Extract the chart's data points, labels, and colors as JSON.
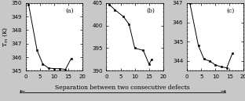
{
  "panels": [
    {
      "label": "(a)",
      "x": [
        1,
        4,
        6,
        8,
        10,
        12,
        14,
        16
      ],
      "y": [
        349.9,
        346.5,
        345.5,
        345.2,
        345.15,
        345.15,
        345.1,
        345.9
      ],
      "ylim": [
        345,
        350
      ],
      "yticks": [
        345,
        346,
        347,
        348,
        349,
        350
      ],
      "ytick_labels": [
        "345",
        "346",
        "347",
        "348",
        "349",
        "350"
      ],
      "xlim": [
        0,
        20
      ],
      "xticks": [
        0,
        5,
        10,
        15,
        20
      ]
    },
    {
      "label": "(b)",
      "x": [
        1,
        3,
        6,
        8,
        10,
        13,
        15,
        16
      ],
      "y": [
        404.7,
        403.5,
        402.0,
        400.3,
        395.0,
        394.5,
        391.5,
        392.5
      ],
      "ylim": [
        390,
        405
      ],
      "yticks": [
        390,
        395,
        400,
        405
      ],
      "ytick_labels": [
        "390",
        "395",
        "400",
        "405"
      ],
      "xlim": [
        0,
        20
      ],
      "xticks": [
        0,
        5,
        10,
        15,
        20
      ]
    },
    {
      "label": "(c)",
      "x": [
        1,
        4,
        6,
        8,
        10,
        12,
        14,
        16
      ],
      "y": [
        347.0,
        344.8,
        344.1,
        344.0,
        343.8,
        343.7,
        343.65,
        344.4
      ],
      "ylim": [
        343.5,
        347
      ],
      "yticks": [
        344,
        345,
        346,
        347
      ],
      "ytick_labels": [
        "344",
        "345",
        "346",
        "347"
      ],
      "xlim": [
        0,
        20
      ],
      "xticks": [
        0,
        5,
        10,
        15,
        20
      ]
    }
  ],
  "ylabel": "T$_{m}$ (K)",
  "xlabel": "Separation between two consecutive defects",
  "fig_bg_color": "#c8c8c8",
  "plot_bg_color": "#ffffff",
  "line_color": "#000000",
  "marker": "s",
  "markersize": 2.0,
  "linewidth": 0.7,
  "tick_fontsize": 5.0,
  "label_fontsize": 5.5,
  "panel_label_fontsize": 5.5
}
